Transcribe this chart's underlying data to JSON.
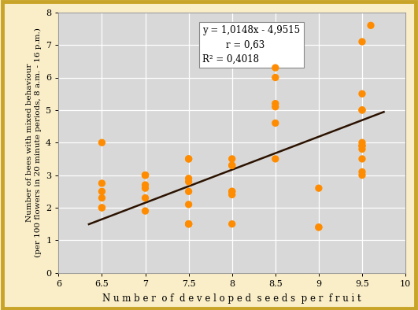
{
  "xlabel": "N u m b e r  o f  d e v e l o p e d  s e e d s  p e r  f r u i t",
  "ylabel_line1": "Number of bees with mixed behaviour",
  "ylabel_line2": "(per 100 flowers in 20 minute periods, 8 a.m. - 16 p.m.)",
  "xlim": [
    6,
    10
  ],
  "ylim": [
    0,
    8
  ],
  "xticks": [
    6,
    6.5,
    7,
    7.5,
    8,
    8.5,
    9,
    9.5,
    10
  ],
  "yticks": [
    0,
    1,
    2,
    3,
    4,
    5,
    6,
    7,
    8
  ],
  "scatter_x": [
    6.5,
    6.5,
    6.5,
    6.5,
    6.5,
    6.5,
    7.0,
    7.0,
    7.0,
    7.0,
    7.0,
    7.0,
    7.0,
    7.5,
    7.5,
    7.5,
    7.5,
    7.5,
    7.5,
    7.5,
    7.5,
    7.5,
    8.0,
    8.0,
    8.0,
    8.0,
    8.0,
    8.0,
    8.0,
    8.5,
    8.5,
    8.5,
    8.5,
    8.5,
    8.5,
    9.0,
    9.0,
    9.0,
    9.5,
    9.5,
    9.5,
    9.5,
    9.5,
    9.5,
    9.5,
    9.5,
    9.5,
    9.5,
    9.5,
    9.6
  ],
  "scatter_y": [
    2.0,
    2.0,
    2.3,
    2.5,
    2.75,
    4.0,
    1.9,
    2.3,
    2.6,
    2.7,
    3.0,
    3.0,
    3.0,
    1.5,
    1.5,
    1.5,
    2.1,
    2.5,
    2.8,
    2.9,
    3.5,
    3.5,
    1.5,
    2.4,
    2.5,
    2.5,
    3.3,
    3.3,
    3.5,
    3.5,
    4.6,
    5.1,
    5.2,
    6.0,
    6.3,
    1.4,
    1.4,
    2.6,
    3.0,
    3.5,
    3.8,
    3.9,
    3.9,
    4.0,
    5.0,
    5.0,
    5.5,
    7.1,
    3.1,
    7.6
  ],
  "dot_color": "#FF8C00",
  "dot_size": 45,
  "line_slope": 1.0148,
  "line_intercept": -4.9515,
  "line_color": "#2b1200",
  "line_width": 1.8,
  "annotation_text": "y = 1,0148x - 4,9515\n        r = 0,63\nR² = 0,4018",
  "bg_color": "#faeec8",
  "plot_bg_alpha_color": "#d8d8d8",
  "grid_color": "#ffffff",
  "border_color": "#c8a428",
  "xlabel_fontsize": 8.5,
  "ylabel_fontsize": 7.5,
  "tick_fontsize": 8,
  "annotation_fontsize": 8.5
}
